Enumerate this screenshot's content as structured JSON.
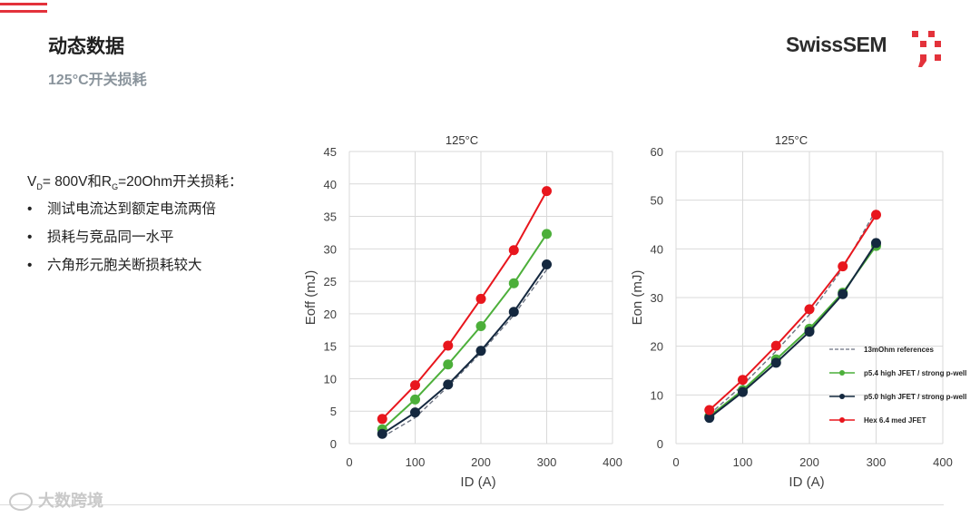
{
  "header": {
    "title": "动态数据",
    "subtitle": "125°C开关损耗",
    "logo_text": "SwissSEM"
  },
  "bullets": {
    "intro": {
      "v": "V",
      "v_sub": "D",
      "mid": "= 800V和R",
      "r_sub": "G",
      "tail": "=20Ohm开关损耗："
    },
    "items": [
      "测试电流达到额定电流两倍",
      "损耗与竞品同一水平",
      "六角形元胞关断损耗较大"
    ]
  },
  "watermark": "大数跨境",
  "colors": {
    "accent": "#e3323b",
    "ref": "#6b7280",
    "green": "#4caf3a",
    "navy": "#14283f",
    "red": "#e8161d"
  },
  "chart_data": [
    {
      "type": "line",
      "title": "125°C",
      "xlabel": "ID (A)",
      "ylabel": "Eoff (mJ)",
      "xlim": [
        0,
        400
      ],
      "ylim": [
        0,
        45
      ],
      "xticks": [
        0,
        100,
        200,
        300,
        400
      ],
      "yticks": [
        0,
        5,
        10,
        15,
        20,
        25,
        30,
        35,
        40,
        45
      ],
      "grid": true,
      "x": [
        50,
        100,
        150,
        200,
        250,
        300
      ],
      "series": [
        {
          "key": "ref",
          "color": "#6b7280",
          "dashed": true,
          "markers": false,
          "values": [
            1.0,
            4.0,
            8.8,
            14.0,
            19.8,
            26.8
          ]
        },
        {
          "key": "green",
          "color": "#4caf3a",
          "dashed": false,
          "markers": true,
          "values": [
            2.2,
            6.8,
            12.2,
            18.1,
            24.7,
            32.3
          ]
        },
        {
          "key": "navy",
          "color": "#14283f",
          "dashed": false,
          "markers": true,
          "values": [
            1.5,
            4.8,
            9.1,
            14.3,
            20.3,
            27.6
          ]
        },
        {
          "key": "red",
          "color": "#e8161d",
          "dashed": false,
          "markers": true,
          "values": [
            3.8,
            9.0,
            15.1,
            22.3,
            29.8,
            38.9
          ]
        }
      ]
    },
    {
      "type": "line",
      "title": "125°C",
      "xlabel": "ID (A)",
      "ylabel": "Eon (mJ)",
      "xlim": [
        0,
        400
      ],
      "ylim": [
        0,
        60
      ],
      "xticks": [
        0,
        100,
        200,
        300,
        400
      ],
      "yticks": [
        0,
        10,
        20,
        30,
        40,
        50,
        60
      ],
      "grid": true,
      "legend_position": "right",
      "x": [
        50,
        100,
        150,
        200,
        250,
        300
      ],
      "series": [
        {
          "key": "ref",
          "name": "13mOhm references",
          "color": "#6b7280",
          "dashed": true,
          "markers": false,
          "values": [
            6.0,
            12.0,
            19.0,
            26.5,
            36.0,
            48.0
          ]
        },
        {
          "key": "green",
          "name": "p5.4 high JFET / strong p-well",
          "color": "#4caf3a",
          "dashed": false,
          "markers": true,
          "values": [
            5.6,
            11.0,
            17.3,
            23.6,
            31.0,
            40.6
          ]
        },
        {
          "key": "navy",
          "name": "p5.0 high JFET / strong p-well",
          "color": "#14283f",
          "dashed": false,
          "markers": true,
          "values": [
            5.3,
            10.6,
            16.6,
            23.0,
            30.7,
            41.2
          ]
        },
        {
          "key": "red",
          "name": "Hex 6.4 med JFET",
          "color": "#e8161d",
          "dashed": false,
          "markers": true,
          "values": [
            6.9,
            13.1,
            20.1,
            27.6,
            36.4,
            47.0
          ]
        }
      ]
    }
  ]
}
